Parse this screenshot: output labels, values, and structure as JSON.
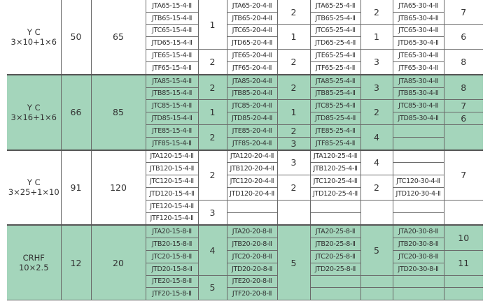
{
  "colors": {
    "green": "#a4d5bb",
    "white": "#ffffff",
    "border": "#6a6a6a"
  },
  "groups": [
    {
      "green": false,
      "spec": [
        "Y C",
        "3×10+1×6"
      ],
      "a": "50",
      "b": "65",
      "c15": [
        "JTA65-15-4-Ⅱ",
        "JTB65-15-4-Ⅱ",
        "JTC65-15-4-Ⅱ",
        "JTD65-15-4-Ⅱ",
        "JTE65-15-4-Ⅱ",
        "JTF65-15-4-Ⅱ"
      ],
      "n15": [
        {
          "t": "1",
          "s": 4
        },
        {
          "t": "2",
          "s": 2
        }
      ],
      "c20": [
        "JTA65-20-4-Ⅱ",
        "JTB65-20-4-Ⅱ",
        "JTC65-20-4-Ⅱ",
        "JTD65-20-4-Ⅱ",
        "JTE65-20-4-Ⅱ",
        "JTF65-20-4-Ⅱ"
      ],
      "n20": [
        {
          "t": "2",
          "s": 2
        },
        {
          "t": "1",
          "s": 2
        },
        {
          "t": "2",
          "s": 2
        }
      ],
      "c25": [
        "JTA65-25-4-Ⅱ",
        "JTB65-25-4-Ⅱ",
        "JTC65-25-4-Ⅱ",
        "JTD65-25-4-Ⅱ",
        "JTE65-25-4-Ⅱ",
        "JTF65-25-4-Ⅱ"
      ],
      "n25": [
        {
          "t": "2",
          "s": 2
        },
        {
          "t": "1",
          "s": 2
        },
        {
          "t": "3",
          "s": 2
        }
      ],
      "c30": [
        "JTA65-30-4-Ⅱ",
        "JTB65-30-4-Ⅱ",
        "JTC65-30-4-Ⅱ",
        "JTD65-30-4-Ⅱ",
        "JTE65-30-4-Ⅱ",
        "JTF65-30-4-Ⅱ"
      ],
      "n30": [
        {
          "t": "7",
          "s": 2
        },
        {
          "t": "6",
          "s": 2
        },
        {
          "t": "8",
          "s": 2
        }
      ]
    },
    {
      "green": true,
      "spec": [
        "Y C",
        "3×16+1×6"
      ],
      "a": "66",
      "b": "85",
      "c15": [
        "JTA85-15-4-Ⅱ",
        "JTB85-15-4-Ⅱ",
        "JTC85-15-4-Ⅱ",
        "JTD85-15-4-Ⅱ",
        "JTE85-15-4-Ⅱ",
        "JTF85-15-4-Ⅱ"
      ],
      "n15": [
        {
          "t": "2",
          "s": 2
        },
        {
          "t": "1",
          "s": 2
        },
        {
          "t": "2",
          "s": 2
        }
      ],
      "c20": [
        "JTA85-20-4-Ⅱ",
        "JTB85-20-4-Ⅱ",
        "JTC85-20-4-Ⅱ",
        "JTD85-20-4-Ⅱ",
        "JTE85-20-4-Ⅱ",
        "JTF85-20-4-Ⅱ"
      ],
      "n20": [
        {
          "t": "2",
          "s": 2
        },
        {
          "t": "1",
          "s": 2
        },
        {
          "t": "2",
          "s": 1
        },
        {
          "t": "3",
          "s": 1
        }
      ],
      "c25": [
        "JTA85-25-4-Ⅱ",
        "JTB85-25-4-Ⅱ",
        "JTC85-25-4-Ⅱ",
        "JTD85-25-4-Ⅱ",
        "JTE85-25-4-Ⅱ",
        "JTF85-25-4-Ⅱ"
      ],
      "n25": [
        {
          "t": "3",
          "s": 2
        },
        {
          "t": "2",
          "s": 2
        },
        {
          "t": "4",
          "s": 2
        }
      ],
      "c30": [
        "JTA85-30-4-Ⅱ",
        "JTB85-30-4-Ⅱ",
        "JTC85-30-4-Ⅱ",
        "JTD85-30-4-Ⅱ",
        "",
        ""
      ],
      "n30": [
        {
          "t": "8",
          "s": 2
        },
        {
          "t": "7",
          "s": 1
        },
        {
          "t": "6",
          "s": 1
        },
        {
          "t": "",
          "s": 2
        }
      ]
    },
    {
      "green": false,
      "spec": [
        "Y C",
        "3×25+1×10"
      ],
      "a": "91",
      "b": "120",
      "c15": [
        "JTA120-15-4-Ⅱ",
        "JTB120-15-4-Ⅱ",
        "JTC120-15-4-Ⅱ",
        "JTD120-15-4-Ⅱ",
        "JTE120-15-4-Ⅱ",
        "JTF120-15-4-Ⅱ"
      ],
      "n15": [
        {
          "t": "2",
          "s": 4
        },
        {
          "t": "3",
          "s": 2
        }
      ],
      "c20": [
        "JTA120-20-4-Ⅱ",
        "JTB120-20-4-Ⅱ",
        "JTC120-20-4-Ⅱ",
        "JTD120-20-4-Ⅱ",
        "",
        ""
      ],
      "n20": [
        {
          "t": "3",
          "s": 2
        },
        {
          "t": "2",
          "s": 2
        },
        {
          "t": "",
          "s": 2
        }
      ],
      "c25": [
        "JTA120-25-4-Ⅱ",
        "JTB120-25-4-Ⅱ",
        "JTC120-25-4-Ⅱ",
        "JTD120-25-4-Ⅱ",
        "",
        ""
      ],
      "n25": [
        {
          "t": "4",
          "s": 2
        },
        {
          "t": "2",
          "s": 2
        },
        {
          "t": "",
          "s": 2
        }
      ],
      "c30": [
        "",
        "",
        "JTC120-30-4-Ⅱ",
        "JTD120-30-4-Ⅱ",
        "",
        ""
      ],
      "n30": [
        {
          "t": "7",
          "s": 4
        },
        {
          "t": "",
          "s": 2
        }
      ]
    },
    {
      "green": true,
      "spec": [
        "CRHF",
        "10×2.5"
      ],
      "a": "12",
      "b": "20",
      "c15": [
        "JTA20-15-8-Ⅱ",
        "JTB20-15-8-Ⅱ",
        "JTC20-15-8-Ⅱ",
        "JTD20-15-8-Ⅱ",
        "JTE20-15-8-Ⅱ",
        "JTF20-15-8-Ⅱ"
      ],
      "n15": [
        {
          "t": "4",
          "s": 4
        },
        {
          "t": "5",
          "s": 2
        }
      ],
      "c20": [
        "JTA20-20-8-Ⅱ",
        "JTB20-20-8-Ⅱ",
        "JTC20-20-8-Ⅱ",
        "JTD20-20-8-Ⅱ",
        "JTE20-20-8-Ⅱ",
        "JTF20-20-8-Ⅱ"
      ],
      "n20": [
        {
          "t": "5",
          "s": 6
        }
      ],
      "c25": [
        "JTA20-25-8-Ⅱ",
        "JTB20-25-8-Ⅱ",
        "JTC20-25-8-Ⅱ",
        "JTD20-25-8-Ⅱ",
        "",
        ""
      ],
      "n25": [
        {
          "t": "5",
          "s": 4
        },
        {
          "t": "",
          "s": 1
        },
        {
          "t": "",
          "s": 1
        }
      ],
      "c30": [
        "JTA20-30-8-Ⅱ",
        "JTB20-30-8-Ⅱ",
        "JTC20-30-8-Ⅱ",
        "JTD20-30-8-Ⅱ",
        "",
        ""
      ],
      "n30": [
        {
          "t": "10",
          "s": 2
        },
        {
          "t": "11",
          "s": 2
        },
        {
          "t": "",
          "s": 1
        },
        {
          "t": "",
          "s": 1
        }
      ]
    }
  ]
}
